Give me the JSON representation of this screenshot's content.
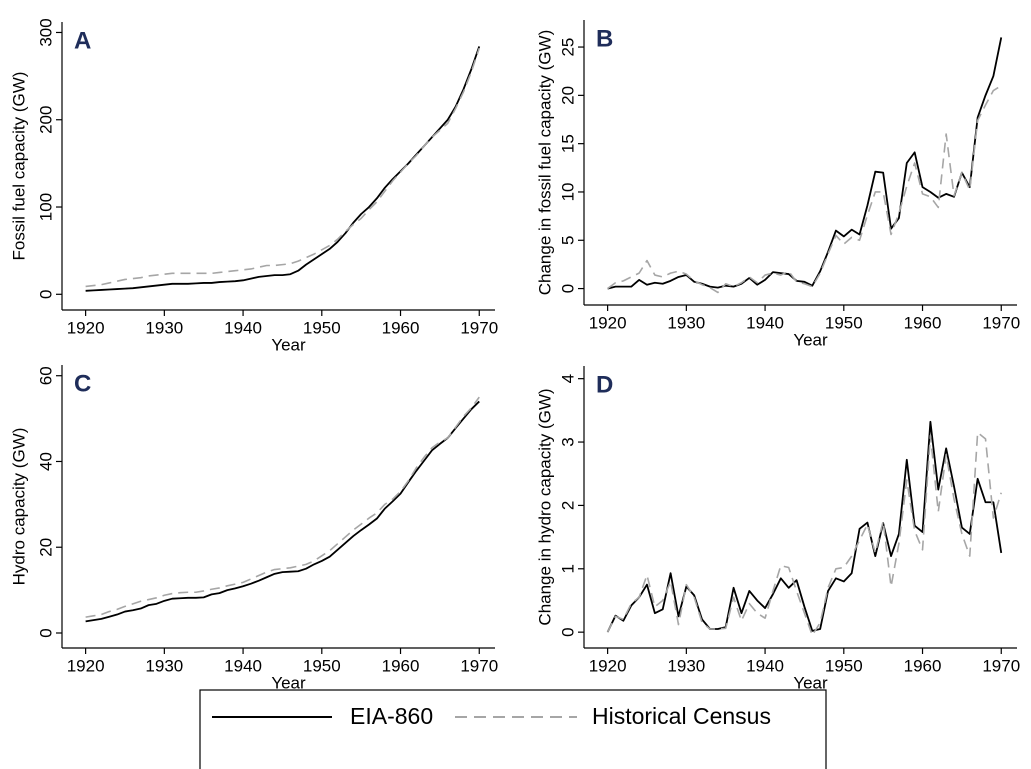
{
  "chart_data": [
    {
      "type": "line",
      "panel_label": "A",
      "x_label": "Year",
      "y_label": "Fossil fuel capacity (GW)",
      "x": [
        1920,
        1921,
        1922,
        1923,
        1924,
        1925,
        1926,
        1927,
        1928,
        1929,
        1930,
        1931,
        1932,
        1933,
        1934,
        1935,
        1936,
        1937,
        1938,
        1939,
        1940,
        1941,
        1942,
        1943,
        1944,
        1945,
        1946,
        1947,
        1948,
        1949,
        1950,
        1951,
        1952,
        1953,
        1954,
        1955,
        1956,
        1957,
        1958,
        1959,
        1960,
        1961,
        1962,
        1963,
        1964,
        1965,
        1966,
        1967,
        1968,
        1969,
        1970
      ],
      "series": [
        {
          "name": "EIA-860",
          "color": "#000000",
          "line_style": "solid",
          "values": [
            4,
            4.5,
            5,
            5.5,
            6,
            6.5,
            7,
            8,
            9,
            10,
            11,
            12,
            12,
            12,
            12.5,
            13,
            13,
            14,
            14.5,
            15,
            16,
            18,
            20,
            21,
            22,
            22,
            23,
            27,
            34,
            40,
            46,
            52,
            60,
            70,
            82,
            92,
            100,
            110,
            122,
            132,
            141,
            150,
            160,
            170,
            180,
            190,
            200,
            215,
            235,
            258,
            284
          ]
        },
        {
          "name": "Historical Census",
          "color": "#a6a6a6",
          "line_style": "dashed",
          "values": [
            9,
            10,
            11,
            13,
            15,
            17,
            18,
            19,
            21,
            22,
            23,
            24,
            24,
            24,
            24,
            24,
            24,
            25,
            26,
            27,
            28,
            29,
            31,
            33,
            33,
            34,
            35,
            38,
            42,
            46,
            51,
            56,
            63,
            72,
            80,
            87,
            97,
            106,
            118,
            130,
            140,
            150,
            159,
            170,
            180,
            188,
            196,
            213,
            232,
            255,
            282
          ]
        }
      ],
      "xlim": [
        1917,
        1972
      ],
      "ylim": [
        -18,
        312
      ],
      "xticks": [
        1920,
        1930,
        1940,
        1950,
        1960,
        1970
      ],
      "yticks": [
        0,
        100,
        200,
        300
      ]
    },
    {
      "type": "line",
      "panel_label": "B",
      "x_label": "Year",
      "y_label": "Change in fossil fuel capacity (GW)",
      "x": [
        1920,
        1921,
        1922,
        1923,
        1924,
        1925,
        1926,
        1927,
        1928,
        1929,
        1930,
        1931,
        1932,
        1933,
        1934,
        1935,
        1936,
        1937,
        1938,
        1939,
        1940,
        1941,
        1942,
        1943,
        1944,
        1945,
        1946,
        1947,
        1948,
        1949,
        1950,
        1951,
        1952,
        1953,
        1954,
        1955,
        1956,
        1957,
        1958,
        1959,
        1960,
        1961,
        1962,
        1963,
        1964,
        1965,
        1966,
        1967,
        1968,
        1969,
        1970
      ],
      "series": [
        {
          "name": "EIA-860",
          "color": "#000000",
          "line_style": "solid",
          "values": [
            0,
            0.2,
            0.2,
            0.2,
            0.9,
            0.4,
            0.6,
            0.5,
            0.8,
            1.2,
            1.4,
            0.7,
            0.5,
            0.2,
            0.1,
            0.3,
            0.2,
            0.5,
            1.1,
            0.4,
            0.9,
            1.7,
            1.6,
            1.5,
            0.8,
            0.7,
            0.3,
            1.8,
            3.8,
            6.0,
            5.4,
            6.1,
            5.6,
            8.6,
            12.1,
            12.0,
            6.2,
            7.3,
            13.0,
            14.1,
            10.5,
            10.0,
            9.4,
            9.8,
            9.5,
            12.0,
            10.5,
            17.7,
            20.0,
            22.0,
            26.0
          ]
        },
        {
          "name": "Historical Census",
          "color": "#a6a6a6",
          "line_style": "dashed",
          "values": [
            0,
            0.6,
            0.8,
            1.2,
            1.6,
            2.9,
            1.4,
            1.2,
            1.6,
            1.8,
            1.5,
            0.8,
            0.4,
            0.1,
            -0.4,
            0.5,
            0.2,
            0.6,
            1.2,
            0.6,
            1.4,
            1.6,
            1.4,
            1.8,
            0.7,
            0.5,
            0.2,
            1.6,
            3.6,
            5.5,
            4.6,
            5.3,
            5.0,
            7.6,
            10.0,
            10.0,
            5.6,
            7.8,
            10.6,
            13.0,
            9.8,
            9.5,
            8.4,
            16.0,
            9.6,
            12.0,
            10.2,
            17.4,
            19.0,
            20.5,
            21.0
          ]
        }
      ],
      "xlim": [
        1917,
        1972
      ],
      "ylim": [
        -1.7,
        27.8
      ],
      "xticks": [
        1920,
        1930,
        1940,
        1950,
        1960,
        1970
      ],
      "yticks": [
        0,
        5,
        10,
        15,
        20,
        25
      ]
    },
    {
      "type": "line",
      "panel_label": "C",
      "x_label": "Year",
      "y_label": "Hydro capacity (GW)",
      "x": [
        1920,
        1921,
        1922,
        1923,
        1924,
        1925,
        1926,
        1927,
        1928,
        1929,
        1930,
        1931,
        1932,
        1933,
        1934,
        1935,
        1936,
        1937,
        1938,
        1939,
        1940,
        1941,
        1942,
        1943,
        1944,
        1945,
        1946,
        1947,
        1948,
        1949,
        1950,
        1951,
        1952,
        1953,
        1954,
        1955,
        1956,
        1957,
        1958,
        1959,
        1960,
        1961,
        1962,
        1963,
        1964,
        1965,
        1966,
        1967,
        1968,
        1969,
        1970
      ],
      "series": [
        {
          "name": "EIA-860",
          "color": "#000000",
          "line_style": "solid",
          "values": [
            2.7,
            3.0,
            3.3,
            3.8,
            4.3,
            5.0,
            5.3,
            5.7,
            6.5,
            6.8,
            7.5,
            8.0,
            8.1,
            8.2,
            8.2,
            8.3,
            9.0,
            9.3,
            10.0,
            10.4,
            10.9,
            11.5,
            12.2,
            13.0,
            13.8,
            14.2,
            14.3,
            14.4,
            15.0,
            16.0,
            16.8,
            17.8,
            19.4,
            21.0,
            22.6,
            24.0,
            25.3,
            26.7,
            29.0,
            30.7,
            32.5,
            35.2,
            37.8,
            40.2,
            42.6,
            44.1,
            45.5,
            47.8,
            50.0,
            52.2,
            54.0
          ]
        },
        {
          "name": "Historical Census",
          "color": "#a6a6a6",
          "line_style": "dashed",
          "values": [
            3.7,
            4.0,
            4.3,
            5.0,
            5.5,
            6.2,
            6.8,
            7.4,
            7.8,
            8.2,
            8.8,
            9.2,
            9.4,
            9.5,
            9.5,
            9.8,
            10.2,
            10.5,
            11.0,
            11.4,
            11.8,
            12.6,
            13.4,
            14.2,
            14.8,
            15.0,
            15.2,
            15.6,
            16.0,
            16.8,
            18.0,
            19.2,
            20.8,
            22.4,
            24.0,
            25.4,
            26.8,
            28.0,
            30.0,
            31.2,
            33.0,
            35.5,
            38.5,
            41.0,
            43.2,
            44.5,
            45.5,
            48.0,
            50.5,
            52.5,
            55.0
          ]
        }
      ],
      "xlim": [
        1917,
        1972
      ],
      "ylim": [
        -3.5,
        62.5
      ],
      "xticks": [
        1920,
        1930,
        1940,
        1950,
        1960,
        1970
      ],
      "yticks": [
        0,
        20,
        40,
        60
      ]
    },
    {
      "type": "line",
      "panel_label": "D",
      "x_label": "Year",
      "y_label": "Change in hydro capacity (GW)",
      "x": [
        1920,
        1921,
        1922,
        1923,
        1924,
        1925,
        1926,
        1927,
        1928,
        1929,
        1930,
        1931,
        1932,
        1933,
        1934,
        1935,
        1936,
        1937,
        1938,
        1939,
        1940,
        1941,
        1942,
        1943,
        1944,
        1945,
        1946,
        1947,
        1948,
        1949,
        1950,
        1951,
        1952,
        1953,
        1954,
        1955,
        1956,
        1957,
        1958,
        1959,
        1960,
        1961,
        1962,
        1963,
        1964,
        1965,
        1966,
        1967,
        1968,
        1969,
        1970
      ],
      "series": [
        {
          "name": "EIA-860",
          "color": "#000000",
          "line_style": "solid",
          "values": [
            0,
            0.26,
            0.18,
            0.42,
            0.55,
            0.75,
            0.3,
            0.36,
            0.93,
            0.25,
            0.72,
            0.58,
            0.2,
            0.05,
            0.05,
            0.08,
            0.7,
            0.3,
            0.65,
            0.5,
            0.38,
            0.6,
            0.85,
            0.7,
            0.82,
            0.4,
            0.02,
            0.05,
            0.65,
            0.85,
            0.8,
            0.93,
            1.63,
            1.73,
            1.2,
            1.72,
            1.2,
            1.55,
            2.72,
            1.68,
            1.58,
            3.32,
            2.25,
            2.9,
            2.3,
            1.65,
            1.55,
            2.42,
            2.05,
            2.05,
            1.25
          ]
        },
        {
          "name": "Historical Census",
          "color": "#a6a6a6",
          "line_style": "dashed",
          "values": [
            0,
            0.25,
            0.2,
            0.45,
            0.55,
            0.9,
            0.4,
            0.5,
            0.8,
            0.12,
            0.75,
            0.55,
            0.15,
            0.05,
            0.05,
            0.06,
            0.55,
            0.18,
            0.45,
            0.3,
            0.22,
            0.65,
            1.05,
            1.02,
            0.65,
            0.3,
            -0.05,
            0.15,
            0.7,
            1.0,
            1.02,
            1.2,
            1.45,
            1.7,
            1.25,
            1.75,
            0.72,
            1.4,
            2.4,
            1.6,
            1.3,
            3.1,
            1.9,
            2.8,
            2.1,
            1.55,
            1.2,
            3.15,
            3.05,
            1.8,
            2.2
          ]
        }
      ],
      "xlim": [
        1917,
        1972
      ],
      "ylim": [
        -0.25,
        4.2
      ],
      "xticks": [
        1920,
        1930,
        1940,
        1950,
        1960,
        1970
      ],
      "yticks": [
        0,
        1,
        2,
        3,
        4
      ]
    }
  ]
}
